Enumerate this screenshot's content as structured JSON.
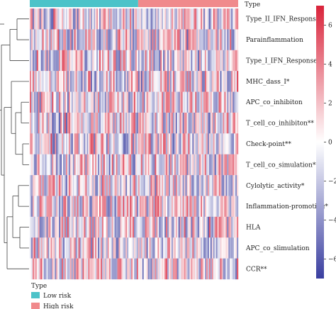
{
  "chart_data": {
    "type": "heatmap",
    "annotation_title": "Type",
    "annotation_groups": [
      {
        "name": "Low risk",
        "color": "#4cc3c9",
        "fraction": 0.52
      },
      {
        "name": "High risk",
        "color": "#f08a8c",
        "fraction": 0.48
      }
    ],
    "rows": [
      "Type_II_IFN_Response*",
      "Parainflammation",
      "Type_I_IFN_Response",
      "MHC_dass_I*",
      "APC_co_inhibiton",
      "T_cell_co_inhibiton**",
      "Check-point**",
      "T_cell_co_simulation***",
      "Cylolytic_activity*",
      "Inflammation-promoting*",
      "HLA",
      "APC_co_slimulation",
      "CCR**"
    ],
    "colorbar": {
      "ticks": [
        6,
        4,
        2,
        0,
        -2,
        -4,
        -6
      ],
      "range": [
        -7,
        7
      ],
      "colors": [
        "#3a3fa0",
        "#ffffff",
        "#d9233a"
      ]
    },
    "legend": {
      "title": "Type",
      "items": [
        {
          "label": "Low risk",
          "color": "#4cc3c9"
        },
        {
          "label": "High risk",
          "color": "#f08a8c"
        }
      ]
    }
  }
}
